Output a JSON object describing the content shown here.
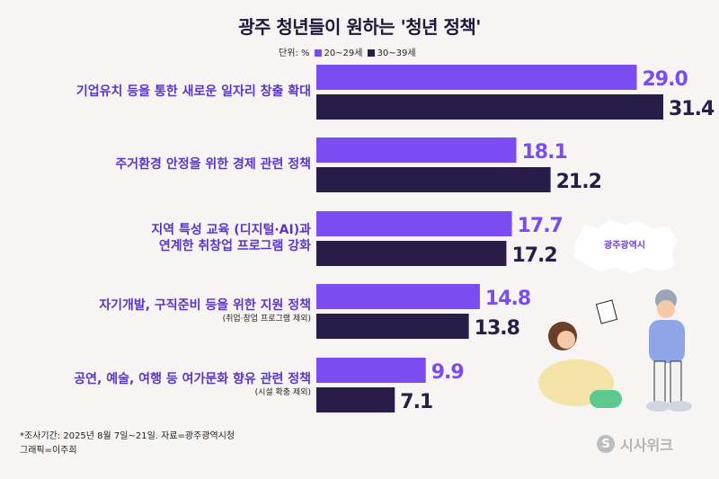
{
  "title": "광주 청년들이 원하는 '청년 정책'",
  "legend": {
    "unit_label": "단위: %",
    "series_a": "20~29세",
    "series_b": "30~39세"
  },
  "colors": {
    "series_a": "#7b4cf0",
    "series_b": "#2a1c49",
    "label": "#5b35c9",
    "map": "#ffffff"
  },
  "chart_data": {
    "type": "bar",
    "orientation": "horizontal",
    "categories": [
      "기업유치 등을 통한 새로운 일자리 창출 확대",
      "주거환경 안정을 위한 경제 관련 정책",
      "지역 특성 교육 (디지털·AI)과 연계한 취창업 프로그램 강화",
      "자기개발, 구직준비 등을  위한 지원 정책",
      "공연, 예술, 여행 등 여가문화 향유 관련 정책"
    ],
    "category_lines": [
      [
        "기업유치 등을 통한 새로운 일자리 창출 확대"
      ],
      [
        "주거환경 안정을 위한 경제 관련 정책"
      ],
      [
        "지역 특성 교육 (디지털·AI)과",
        "연계한 취창업 프로그램 강화"
      ],
      [
        "자기개발, 구직준비 등을  위한 지원 정책"
      ],
      [
        "공연, 예술, 여행 등 여가문화 향유 관련 정책"
      ]
    ],
    "category_notes": [
      "",
      "",
      "",
      "(취업·창업 프로그램 제외)",
      "(시설 확충 제외)"
    ],
    "series": [
      {
        "name": "20~29세",
        "values": [
          29.0,
          18.1,
          17.7,
          14.8,
          9.9
        ]
      },
      {
        "name": "30~39세",
        "values": [
          31.4,
          21.2,
          17.2,
          13.8,
          7.1
        ]
      }
    ],
    "value_labels": [
      [
        "29.0",
        "18.1",
        "17.7",
        "14.8",
        "9.9"
      ],
      [
        "31.4",
        "21.2",
        "17.2",
        "13.8",
        "7.1"
      ]
    ],
    "xlim": [
      0,
      31.4
    ]
  },
  "map_label": "광주광역시",
  "footnote": {
    "survey": "*조사기간: 2025년 8월 7일~21일. 자료=광주광역시청",
    "graphic": "그래픽=이주희"
  },
  "brand": {
    "name": "시사위크",
    "logo_letter": "S"
  }
}
